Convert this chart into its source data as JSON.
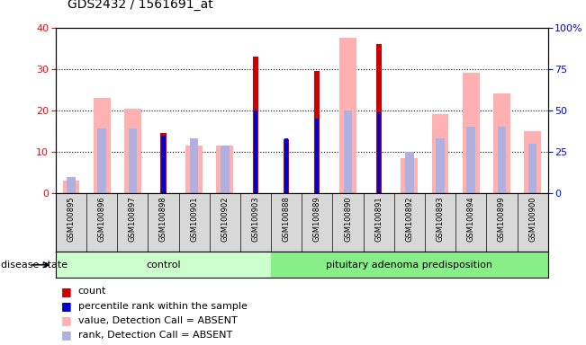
{
  "title": "GDS2432 / 1561691_at",
  "samples": [
    "GSM100895",
    "GSM100896",
    "GSM100897",
    "GSM100898",
    "GSM100901",
    "GSM100902",
    "GSM100903",
    "GSM100888",
    "GSM100889",
    "GSM100890",
    "GSM100891",
    "GSM100892",
    "GSM100893",
    "GSM100894",
    "GSM100899",
    "GSM100900"
  ],
  "control_count": 7,
  "count_red": [
    0,
    0,
    0,
    14.5,
    0,
    0,
    33,
    13,
    29.5,
    0,
    36,
    0,
    0,
    0,
    0,
    0
  ],
  "percentile_blue_pct": [
    0,
    0,
    0,
    35,
    0,
    0,
    50,
    33,
    45,
    0,
    49,
    0,
    0,
    0,
    0,
    0
  ],
  "value_pink": [
    3.0,
    23,
    20.5,
    0,
    11.5,
    11.5,
    0,
    0,
    0,
    37.5,
    0,
    8.5,
    19,
    29,
    24,
    15
  ],
  "rank_lightblue_pct": [
    10,
    39,
    39,
    0,
    33,
    29,
    0,
    0,
    0,
    50,
    0,
    25,
    33,
    40,
    40,
    30
  ],
  "ylim_left": [
    0,
    40
  ],
  "ylim_right": [
    0,
    100
  ],
  "yticks_left": [
    0,
    10,
    20,
    30,
    40
  ],
  "yticks_right": [
    0,
    25,
    50,
    75,
    100
  ],
  "colors": {
    "red": "#cc0000",
    "blue": "#0000cc",
    "pink": "#ffb0b0",
    "lightblue": "#b0b0e0",
    "control_green": "#ccffcc",
    "adenoma_green": "#88ee88"
  },
  "legend_labels": [
    "count",
    "percentile rank within the sample",
    "value, Detection Call = ABSENT",
    "rank, Detection Call = ABSENT"
  ],
  "disease_state_label": "disease state",
  "group_labels": [
    "control",
    "pituitary adenoma predisposition"
  ]
}
